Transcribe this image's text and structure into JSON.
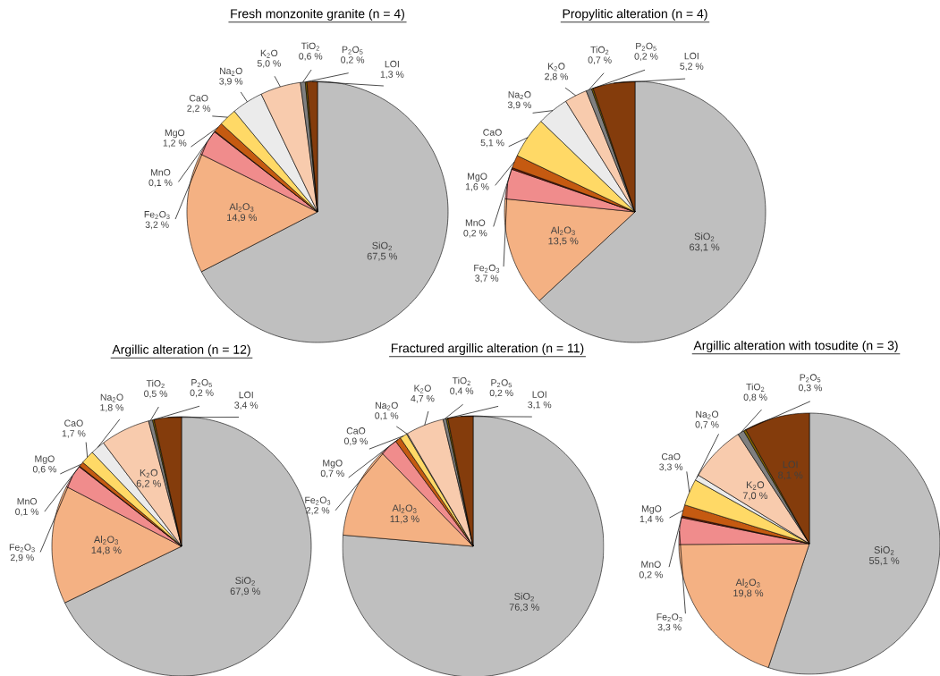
{
  "chart_data": [
    {
      "type": "pie",
      "title": "Fresh monzonite granite (n = 4)",
      "categories": [
        "SiO$_{2}$",
        "Al$_{2}$O$_{3}$",
        "Fe$_{2}$O$_{3}$",
        "MnO",
        "MgO",
        "CaO",
        "Na$_{2}$O",
        "K$_{2}$O",
        "TiO$_{2}$",
        "P$_{2}$O$_{5}$",
        "LOI"
      ],
      "values": [
        67.5,
        14.9,
        3.2,
        0.1,
        1.2,
        2.2,
        3.9,
        5.0,
        0.6,
        0.2,
        1.3
      ],
      "value_labels": [
        "67,5 %",
        "14,9 %",
        "3,2 %",
        "0,1 %",
        "1,2 %",
        "2,2 %",
        "3,9 %",
        "5,0 %",
        "0,6 %",
        "0,2 %",
        "1,3 %"
      ],
      "colors": [
        "#bfbfbf",
        "#f4b183",
        "#f08c8c",
        "#7b1c00",
        "#c55a11",
        "#ffd966",
        "#ebebeb",
        "#f8cbad",
        "#7f7f7f",
        "#7f6000",
        "#843c0c"
      ]
    },
    {
      "type": "pie",
      "title": "Propylitic alteration (n = 4)",
      "categories": [
        "SiO$_{2}$",
        "Al$_{2}$O$_{3}$",
        "Fe$_{2}$O$_{3}$",
        "MnO",
        "MgO",
        "CaO",
        "Na$_{2}$O",
        "K$_{2}$O",
        "TiO$_{2}$",
        "P$_{2}$O$_{5}$",
        "LOI"
      ],
      "values": [
        63.1,
        13.5,
        3.7,
        0.2,
        1.6,
        5.1,
        3.9,
        2.8,
        0.7,
        0.2,
        5.2
      ],
      "value_labels": [
        "63,1 %",
        "13,5 %",
        "3,7 %",
        "0,2 %",
        "1,6 %",
        "5,1 %",
        "3,9 %",
        "2,8 %",
        "0,7 %",
        "0,2 %",
        "5,2 %"
      ],
      "colors": [
        "#bfbfbf",
        "#f4b183",
        "#f08c8c",
        "#7b1c00",
        "#c55a11",
        "#ffd966",
        "#ebebeb",
        "#f8cbad",
        "#7f7f7f",
        "#7f6000",
        "#843c0c"
      ]
    },
    {
      "type": "pie",
      "title": "Argillic alteration (n = 12)",
      "categories": [
        "SiO$_{2}$",
        "Al$_{2}$O$_{3}$",
        "Fe$_{2}$O$_{3}$",
        "MnO",
        "MgO",
        "CaO",
        "Na$_{2}$O",
        "K$_{2}$O",
        "TiO$_{2}$",
        "P$_{2}$O$_{5}$",
        "LOI"
      ],
      "values": [
        67.9,
        14.8,
        2.9,
        0.1,
        0.6,
        1.7,
        1.8,
        6.2,
        0.5,
        0.2,
        3.4
      ],
      "value_labels": [
        "67,9 %",
        "14,8 %",
        "2,9 %",
        "0,1 %",
        "0,6 %",
        "1,7 %",
        "1,8 %",
        "6,2 %",
        "0,5 %",
        "0,2 %",
        "3,4 %"
      ],
      "colors": [
        "#bfbfbf",
        "#f4b183",
        "#f08c8c",
        "#7b1c00",
        "#c55a11",
        "#ffd966",
        "#ebebeb",
        "#f8cbad",
        "#7f7f7f",
        "#7f6000",
        "#843c0c"
      ]
    },
    {
      "type": "pie",
      "title": "Fractured argillic alteration (n = 11)",
      "categories": [
        "SiO$_{2}$",
        "Al$_{2}$O$_{3}$",
        "Fe$_{2}$O$_{3}$",
        "MgO",
        "CaO",
        "Na$_{2}$O",
        "K$_{2}$O",
        "TiO$_{2}$",
        "P$_{2}$O$_{5}$",
        "LOI"
      ],
      "values": [
        76.3,
        11.3,
        2.2,
        0.7,
        0.9,
        0.1,
        4.7,
        0.4,
        0.2,
        3.1
      ],
      "value_labels": [
        "76,3 %",
        "11,3 %",
        "2,2 %",
        "0,7 %",
        "0,9 %",
        "0,1 %",
        "4,7 %",
        "0,4 %",
        "0,2 %",
        "3,1 %"
      ],
      "colors": [
        "#bfbfbf",
        "#f4b183",
        "#f08c8c",
        "#c55a11",
        "#ffd966",
        "#ebebeb",
        "#f8cbad",
        "#7f7f7f",
        "#7f6000",
        "#843c0c"
      ]
    },
    {
      "type": "pie",
      "title": "Argillic alteration with tosudite (n = 3)",
      "categories": [
        "SiO$_{2}$",
        "Al$_{2}$O$_{3}$",
        "Fe$_{2}$O$_{3}$",
        "MnO",
        "MgO",
        "CaO",
        "Na$_{2}$O",
        "K$_{2}$O",
        "TiO$_{2}$",
        "P$_{2}$O$_{5}$",
        "LOI"
      ],
      "values": [
        55.1,
        19.8,
        3.3,
        0.2,
        1.4,
        3.3,
        0.7,
        7.0,
        0.8,
        0.3,
        8.1
      ],
      "value_labels": [
        "55,1 %",
        "19,8 %",
        "3,3 %",
        "0,2 %",
        "1,4 %",
        "3,3 %",
        "0,7 %",
        "7,0 %",
        "0,8 %",
        "0,3 %",
        "8,1 %"
      ],
      "colors": [
        "#bfbfbf",
        "#f4b183",
        "#f08c8c",
        "#7b1c00",
        "#c55a11",
        "#ffd966",
        "#ebebeb",
        "#f8cbad",
        "#7f7f7f",
        "#7f6000",
        "#843c0c"
      ]
    }
  ]
}
